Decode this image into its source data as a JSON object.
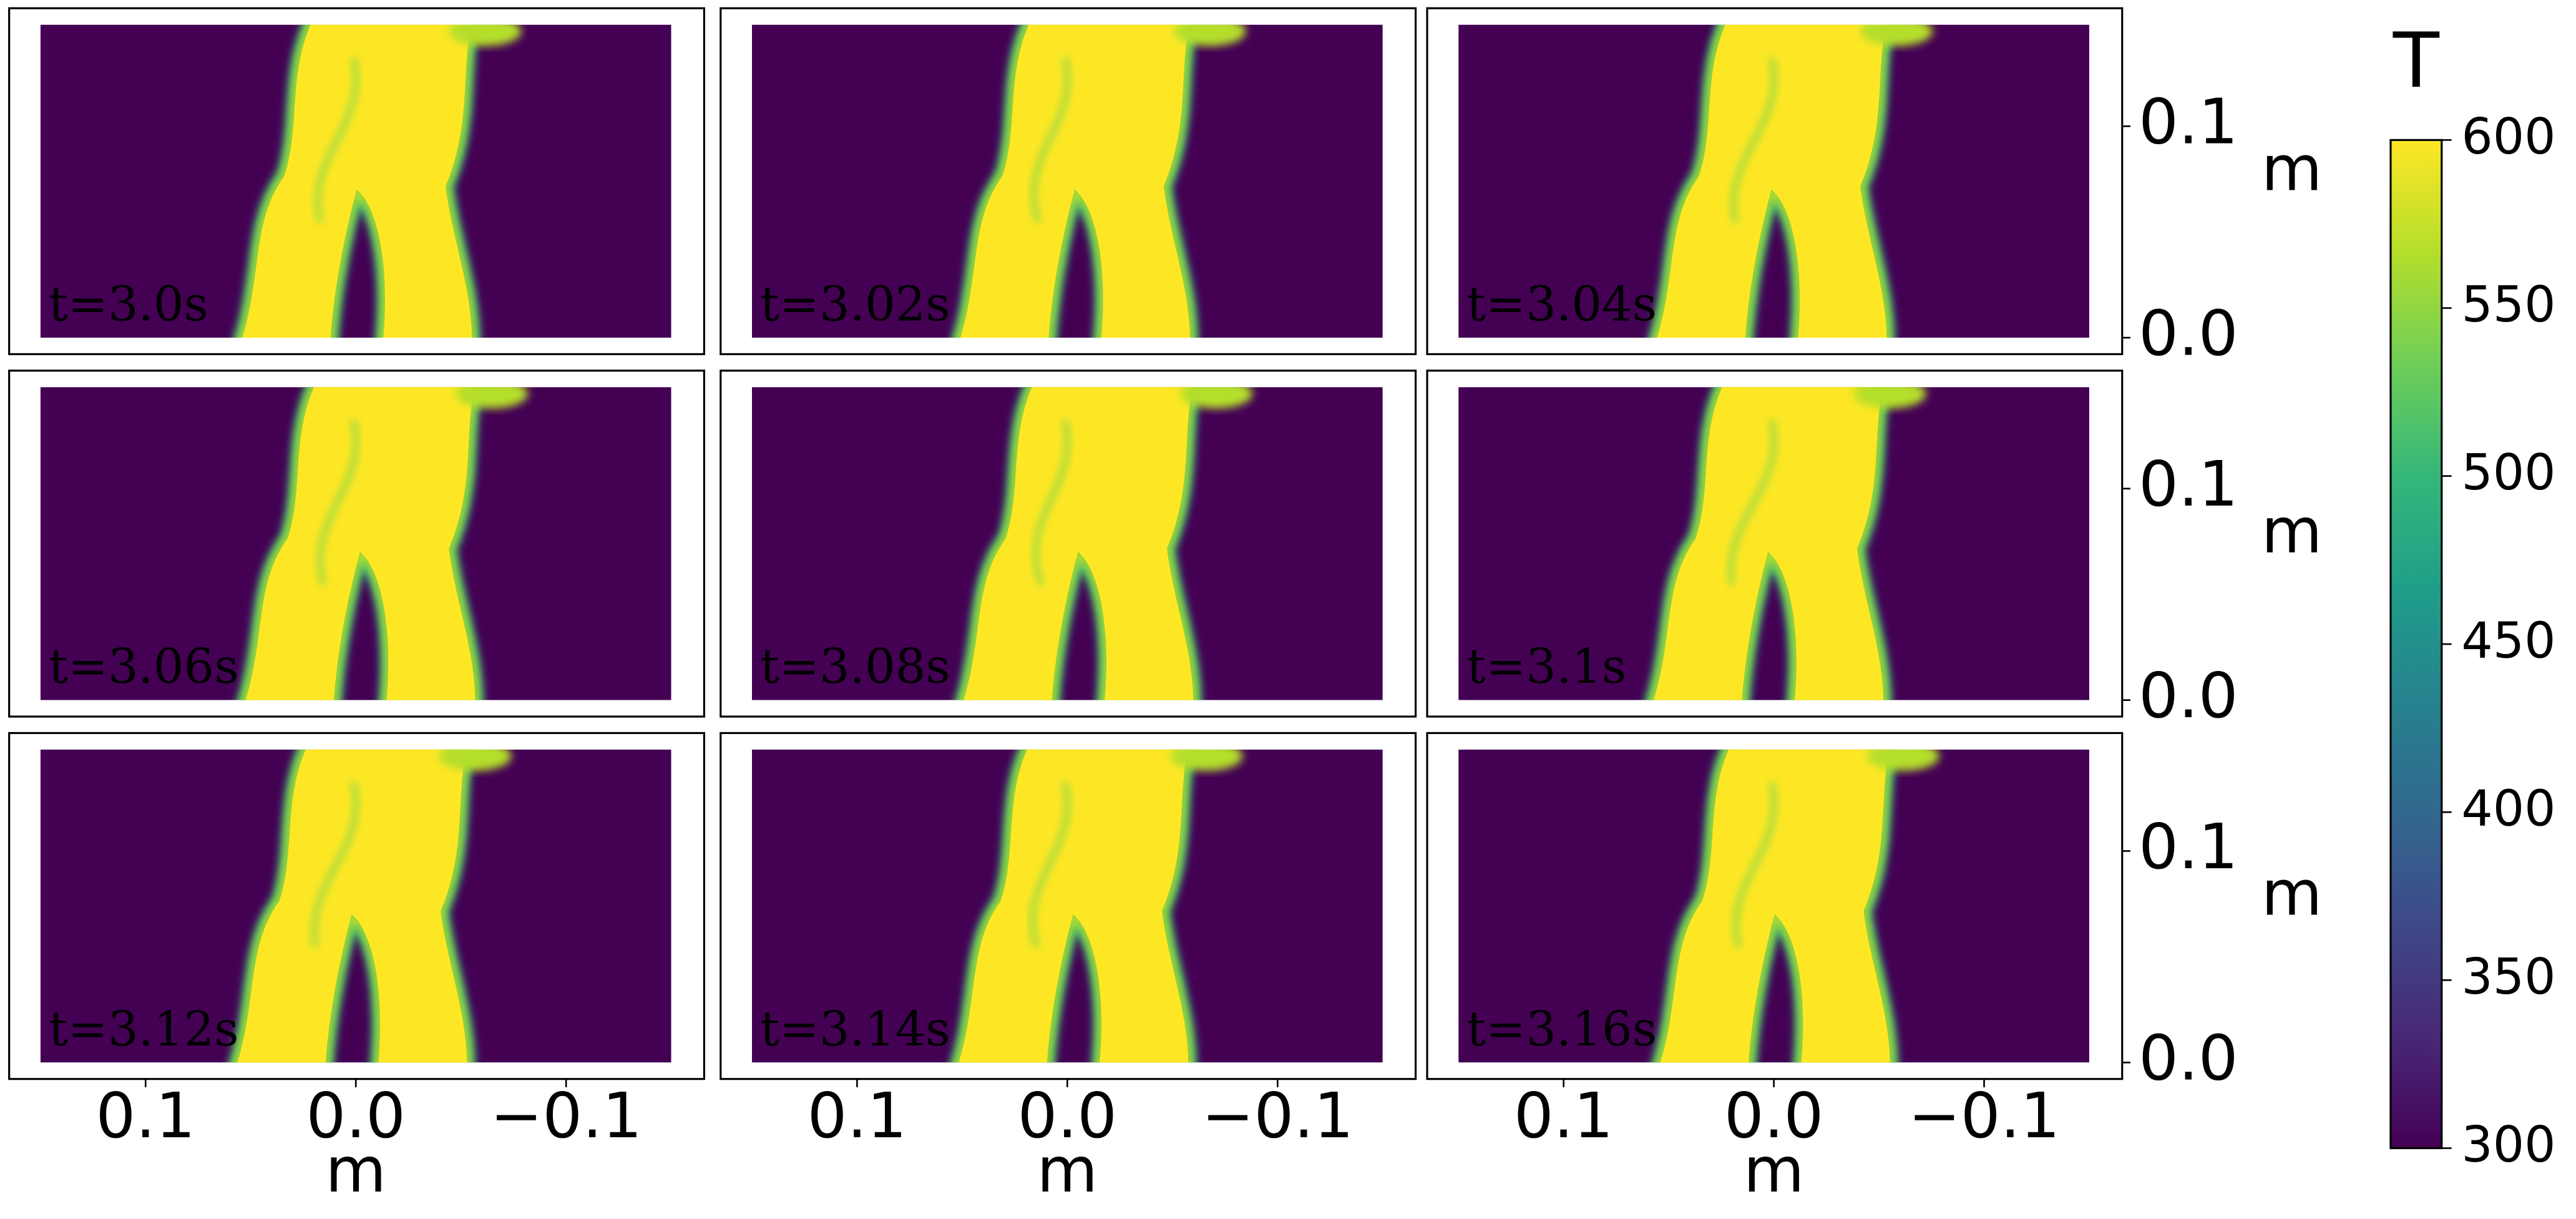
{
  "chart_data": [
    {
      "type": "field",
      "label": "t=3.0s"
    },
    {
      "type": "field",
      "label": "t=3.02s"
    },
    {
      "type": "field",
      "label": "t=3.04s",
      "ylim": [
        0,
        0.148
      ],
      "yticks": [
        {
          "value": 0,
          "label": "0.0"
        },
        0.1
      ],
      "ylabel": "m"
    },
    {
      "type": "field",
      "label": "t=3.06s"
    },
    {
      "type": "field",
      "label": "t=3.08s"
    },
    {
      "type": "field",
      "label": "t=3.1s",
      "ylim": [
        0,
        0.148
      ],
      "yticks": [
        {
          "value": 0,
          "label": "0.0"
        },
        0.1
      ],
      "ylabel": "m"
    },
    {
      "type": "field",
      "label": "t=3.12s",
      "xlim": [
        0.15,
        -0.15
      ],
      "xticks": [
        0.1,
        {
          "value": 0,
          "label": "0.0"
        },
        {
          "value": -0.1,
          "label": "−0.1"
        }
      ],
      "xlabel": "m"
    },
    {
      "type": "field",
      "label": "t=3.14s",
      "xlim": [
        0.15,
        -0.15
      ],
      "xticks": [
        0.1,
        {
          "value": 0,
          "label": "0.0"
        },
        {
          "value": -0.1,
          "label": "−0.1"
        }
      ],
      "xlabel": "m"
    },
    {
      "type": "field",
      "label": "t=3.16s",
      "xlim": [
        0.15,
        -0.15
      ],
      "xticks": [
        0.1,
        {
          "value": 0,
          "label": "0.0"
        },
        {
          "value": -0.1,
          "label": "−0.1"
        }
      ],
      "xlabel": "m",
      "ylim": [
        0,
        0.148
      ],
      "yticks": [
        {
          "value": 0,
          "label": "0.0"
        },
        0.1
      ],
      "ylabel": "m"
    },
    {
      "type": "colorbar",
      "label": "T",
      "colormap": "viridis",
      "ylim": [
        300,
        600
      ],
      "yticks": [
        300,
        350,
        400,
        450,
        500,
        550,
        600
      ]
    }
  ]
}
